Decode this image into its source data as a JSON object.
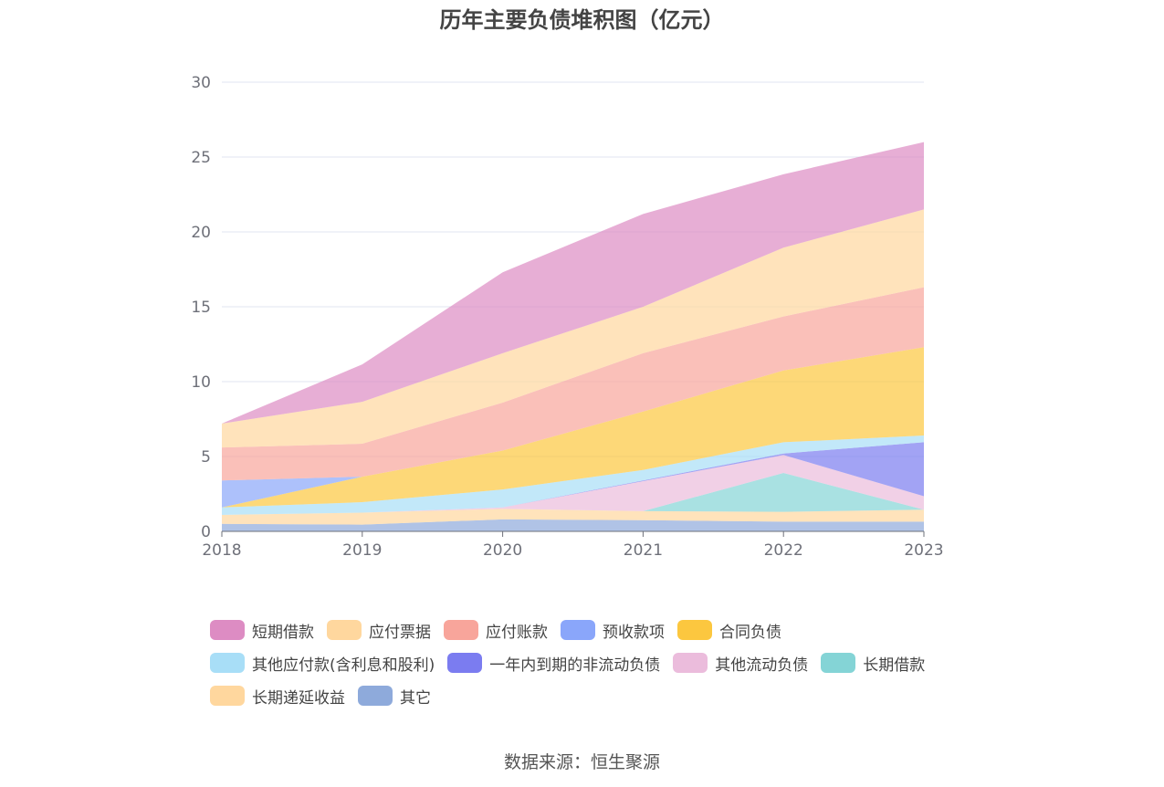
{
  "title": "历年主要负债堆积图（亿元）",
  "source": "数据来源：恒生聚源",
  "chart_data": {
    "type": "area",
    "stacked": true,
    "title": "历年主要负债堆积图（亿元）",
    "x": [
      "2018",
      "2019",
      "2020",
      "2021",
      "2022",
      "2023"
    ],
    "ylim": [
      0,
      30
    ],
    "yticks": [
      "0",
      "5",
      "10",
      "15",
      "20",
      "25",
      "30"
    ],
    "grid": true,
    "legend_position": "bottom",
    "series": [
      {
        "name": "其它",
        "color": "#8eaadb",
        "values": [
          0.5,
          0.45,
          0.8,
          0.75,
          0.65,
          0.65
        ]
      },
      {
        "name": "长期递延收益",
        "color": "#ffd79e",
        "values": [
          0.6,
          0.8,
          0.7,
          0.6,
          0.65,
          0.8
        ]
      },
      {
        "name": "长期借款",
        "color": "#84d4d6",
        "values": [
          0,
          0,
          0,
          0,
          2.6,
          0
        ]
      },
      {
        "name": "其他流动负债",
        "color": "#ebbcdc",
        "values": [
          0,
          0,
          0.1,
          2.0,
          1.2,
          0.9
        ]
      },
      {
        "name": "一年内到期的非流动负债",
        "color": "#7b7cf0",
        "values": [
          0,
          0,
          0,
          0.05,
          0.1,
          3.6
        ]
      },
      {
        "name": "其他应付款(含利息和股利)",
        "color": "#a8def7",
        "values": [
          0.5,
          0.7,
          1.2,
          0.7,
          0.75,
          0.45
        ]
      },
      {
        "name": "合同负债",
        "color": "#fcc73f",
        "values": [
          0,
          1.7,
          2.6,
          3.9,
          4.8,
          5.9
        ]
      },
      {
        "name": "预收款项",
        "color": "#8aa6fa",
        "values": [
          1.8,
          0,
          0,
          0,
          0,
          0
        ]
      },
      {
        "name": "应付账款",
        "color": "#f8a59b",
        "values": [
          2.2,
          2.2,
          3.2,
          3.9,
          3.6,
          4.0
        ]
      },
      {
        "name": "应付票据",
        "color": "#ffd79e",
        "values": [
          1.6,
          2.8,
          3.3,
          3.1,
          4.6,
          5.2
        ]
      },
      {
        "name": "短期借款",
        "color": "#dd8cc3",
        "values": [
          0,
          2.5,
          5.4,
          6.2,
          4.9,
          4.5
        ]
      }
    ]
  },
  "legend": [
    [
      {
        "name": "短期借款",
        "color": "#dd8cc3"
      },
      {
        "name": "应付票据",
        "color": "#ffd79e"
      },
      {
        "name": "应付账款",
        "color": "#f8a59b"
      },
      {
        "name": "预收款项",
        "color": "#8aa6fa"
      },
      {
        "name": "合同负债",
        "color": "#fcc73f"
      }
    ],
    [
      {
        "name": "其他应付款(含利息和股利)",
        "color": "#a8def7"
      },
      {
        "name": "一年内到期的非流动负债",
        "color": "#7b7cf0"
      },
      {
        "name": "其他流动负债",
        "color": "#ebbcdc"
      },
      {
        "name": "长期借款",
        "color": "#84d4d6"
      }
    ],
    [
      {
        "name": "长期递延收益",
        "color": "#ffd79e"
      },
      {
        "name": "其它",
        "color": "#8eaadb"
      }
    ]
  ]
}
